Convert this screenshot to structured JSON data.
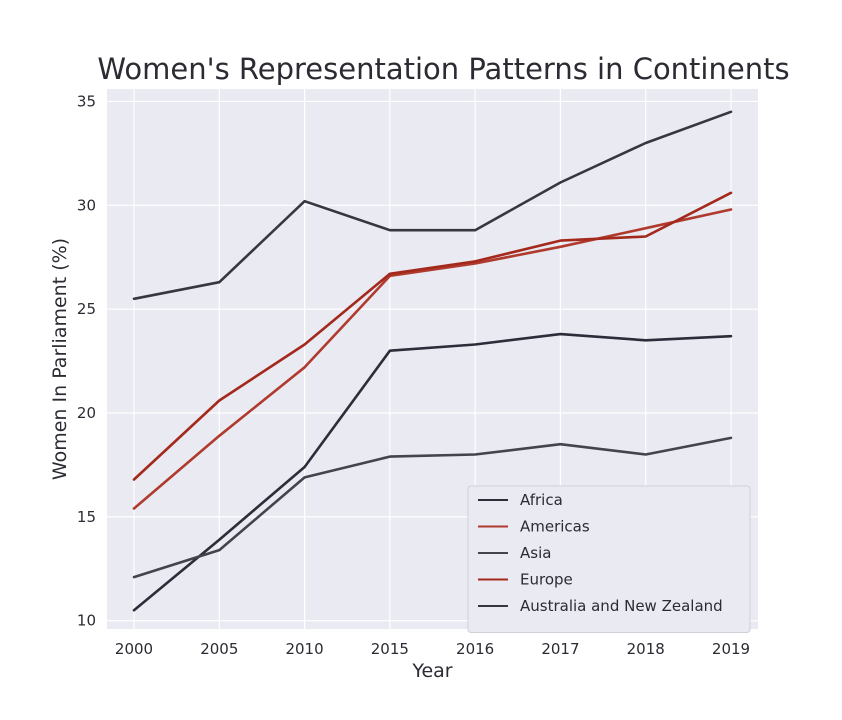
{
  "chart_data": {
    "type": "line",
    "title": "Women's Representation Patterns in Continents",
    "xlabel": "Year",
    "ylabel": "Women In Parliament (%)",
    "categories": [
      "2000",
      "2005",
      "2010",
      "2015",
      "2016",
      "2017",
      "2018",
      "2019"
    ],
    "ylim": [
      9.6,
      35.6
    ],
    "yticks": [
      10,
      15,
      20,
      25,
      30,
      35
    ],
    "grid": true,
    "legend_position": "bottom-right",
    "background": "#eaeaf2",
    "series": [
      {
        "name": "Africa",
        "color": "#2d2d3a",
        "values": [
          10.5,
          13.9,
          17.4,
          23.0,
          23.3,
          23.8,
          23.5,
          23.7
        ]
      },
      {
        "name": "Americas",
        "color": "#b03a2e",
        "values": [
          15.4,
          18.9,
          22.2,
          26.6,
          27.2,
          28.0,
          28.9,
          29.8
        ]
      },
      {
        "name": "Asia",
        "color": "#44444c",
        "values": [
          12.1,
          13.4,
          16.9,
          17.9,
          18.0,
          18.5,
          18.0,
          18.8
        ]
      },
      {
        "name": "Europe",
        "color": "#a3291c",
        "values": [
          16.8,
          20.6,
          23.3,
          26.7,
          27.3,
          28.3,
          28.5,
          30.6
        ]
      },
      {
        "name": "Australia and New Zealand",
        "color": "#373740",
        "values": [
          25.5,
          26.3,
          30.2,
          28.8,
          28.8,
          31.1,
          33.0,
          34.5
        ]
      }
    ]
  }
}
